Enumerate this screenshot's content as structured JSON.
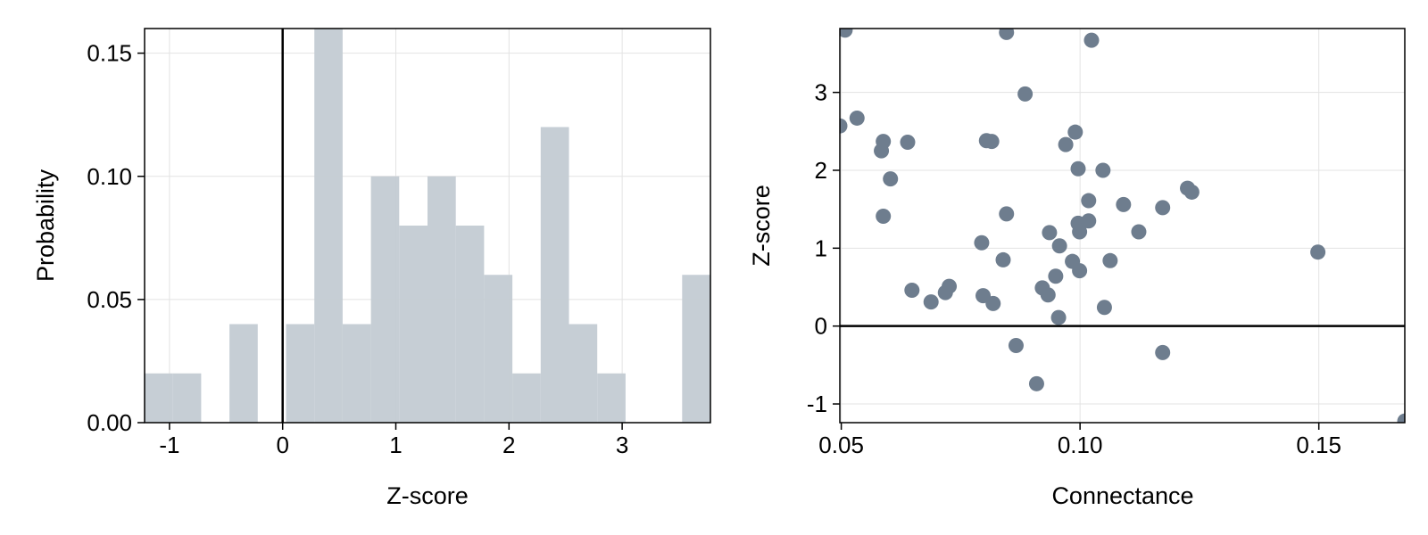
{
  "chart_data": [
    {
      "type": "bar",
      "subtype": "histogram",
      "xlabel": "Z-score",
      "ylabel": "Probability",
      "xlim": [
        -1.22,
        3.78
      ],
      "ylim": [
        0,
        0.16
      ],
      "xticks": [
        -1,
        0,
        1,
        2,
        3
      ],
      "xtick_labels": [
        "-1",
        "0",
        "1",
        "2",
        "3"
      ],
      "yticks": [
        0,
        0.05,
        0.1,
        0.15
      ],
      "ytick_labels": [
        "0.00",
        "0.05",
        "0.10",
        "0.15"
      ],
      "bin_width": 0.25,
      "bins": [
        {
          "start": -1.22,
          "value": 0.02
        },
        {
          "start": -0.97,
          "value": 0.02
        },
        {
          "start": -0.72,
          "value": 0.0
        },
        {
          "start": -0.47,
          "value": 0.04
        },
        {
          "start": -0.22,
          "value": 0.0
        },
        {
          "start": 0.03,
          "value": 0.04
        },
        {
          "start": 0.28,
          "value": 0.16
        },
        {
          "start": 0.53,
          "value": 0.04
        },
        {
          "start": 0.78,
          "value": 0.1
        },
        {
          "start": 1.03,
          "value": 0.08
        },
        {
          "start": 1.28,
          "value": 0.1
        },
        {
          "start": 1.53,
          "value": 0.08
        },
        {
          "start": 1.78,
          "value": 0.06
        },
        {
          "start": 2.03,
          "value": 0.02
        },
        {
          "start": 2.28,
          "value": 0.12
        },
        {
          "start": 2.53,
          "value": 0.04
        },
        {
          "start": 2.78,
          "value": 0.02
        },
        {
          "start": 3.03,
          "value": 0.0
        },
        {
          "start": 3.28,
          "value": 0.0
        },
        {
          "start": 3.53,
          "value": 0.06
        }
      ],
      "reference_line": {
        "orientation": "vertical",
        "value": 0
      },
      "bar_color": "#c3cbd3",
      "grid": true
    },
    {
      "type": "scatter",
      "xlabel": "Connectance",
      "ylabel": "Z-score",
      "xlim": [
        0.0497,
        0.168
      ],
      "ylim": [
        -1.24,
        3.82
      ],
      "xticks": [
        0.05,
        0.1,
        0.15
      ],
      "xtick_labels": [
        "0.05",
        "0.10",
        "0.15"
      ],
      "yticks": [
        -1,
        0,
        1,
        2,
        3
      ],
      "ytick_labels": [
        "-1",
        "0",
        "1",
        "2",
        "3"
      ],
      "reference_line": {
        "orientation": "horizontal",
        "value": 0
      },
      "marker_color": "#6e7d8e",
      "grid": true,
      "points": [
        [
          0.0497,
          2.57
        ],
        [
          0.0508,
          3.8
        ],
        [
          0.0533,
          2.67
        ],
        [
          0.0584,
          2.25
        ],
        [
          0.0588,
          2.37
        ],
        [
          0.0588,
          1.41
        ],
        [
          0.0603,
          1.89
        ],
        [
          0.0639,
          2.36
        ],
        [
          0.0648,
          0.46
        ],
        [
          0.0688,
          0.31
        ],
        [
          0.0718,
          0.43
        ],
        [
          0.0726,
          0.51
        ],
        [
          0.0794,
          1.07
        ],
        [
          0.0797,
          0.39
        ],
        [
          0.0804,
          2.38
        ],
        [
          0.0815,
          2.37
        ],
        [
          0.0818,
          0.29
        ],
        [
          0.0839,
          0.85
        ],
        [
          0.0846,
          3.77
        ],
        [
          0.0846,
          1.44
        ],
        [
          0.0866,
          -0.25
        ],
        [
          0.0885,
          2.98
        ],
        [
          0.0909,
          -0.74
        ],
        [
          0.0921,
          0.49
        ],
        [
          0.0933,
          0.4
        ],
        [
          0.0936,
          1.2
        ],
        [
          0.0949,
          0.64
        ],
        [
          0.0955,
          0.11
        ],
        [
          0.0957,
          1.03
        ],
        [
          0.097,
          2.33
        ],
        [
          0.0984,
          0.83
        ],
        [
          0.099,
          2.49
        ],
        [
          0.0996,
          1.32
        ],
        [
          0.0996,
          2.02
        ],
        [
          0.0999,
          1.21
        ],
        [
          0.0999,
          0.71
        ],
        [
          0.1018,
          1.61
        ],
        [
          0.1018,
          1.35
        ],
        [
          0.1024,
          3.67
        ],
        [
          0.1048,
          2.0
        ],
        [
          0.1051,
          0.24
        ],
        [
          0.1063,
          0.84
        ],
        [
          0.1091,
          1.56
        ],
        [
          0.1123,
          1.21
        ],
        [
          0.1173,
          1.52
        ],
        [
          0.1173,
          -0.34
        ],
        [
          0.1225,
          1.77
        ],
        [
          0.1234,
          1.72
        ],
        [
          0.1498,
          0.95
        ],
        [
          0.168,
          -1.22
        ]
      ]
    }
  ]
}
